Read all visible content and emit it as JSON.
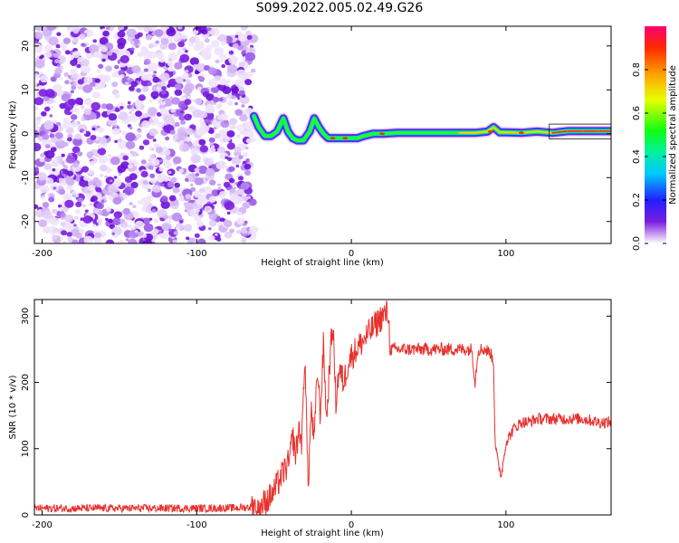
{
  "title": "S099.2022.005.02.49.G26",
  "chart_data": [
    {
      "type": "heatmap",
      "xlabel": "Height of straight line (km)",
      "ylabel": "Frequency (Hz)",
      "xlim": [
        -205,
        168
      ],
      "ylim": [
        -25,
        24.5
      ],
      "xticks": [
        -200,
        -100,
        0,
        100
      ],
      "yticks": [
        -20,
        -10,
        0,
        10,
        20
      ],
      "grid": false,
      "noise_region_x": [
        -205,
        -63
      ],
      "signal_track": {
        "x": [
          -63,
          -60,
          -56,
          -52,
          -48,
          -44,
          -41,
          -38,
          -35,
          -31,
          -27,
          -24,
          -21,
          -18,
          -15,
          -12,
          -8,
          -4,
          0,
          4,
          8,
          14,
          20,
          30,
          40,
          50,
          60,
          70,
          80,
          88,
          92,
          96,
          100,
          110,
          120,
          130,
          140,
          150,
          160,
          168
        ],
        "y": [
          4,
          1.5,
          -0.5,
          -0.5,
          0.5,
          3.5,
          0.5,
          -1,
          -1.5,
          -1.5,
          0.5,
          3.5,
          1.5,
          0,
          -1,
          -1,
          -1,
          -1,
          -1,
          -1,
          -0.5,
          0,
          0,
          0.2,
          0.2,
          0.2,
          0.2,
          0.2,
          0.2,
          0.5,
          1.5,
          0.3,
          0.3,
          0.2,
          0.5,
          0.2,
          0.6,
          0.6,
          0.6,
          0.6
        ]
      },
      "colorbar": {
        "label": "Normalized spectral amplitude",
        "ticks": [
          "0.0",
          "0.2",
          "0.4",
          "0.6",
          "0.8"
        ],
        "range": [
          0,
          1
        ]
      }
    },
    {
      "type": "line",
      "xlabel": "Height of straight line (km)",
      "ylabel": "SNR (10 * v/v)",
      "xlim": [
        -205,
        168
      ],
      "ylim": [
        0,
        325
      ],
      "xticks": [
        -200,
        -100,
        0,
        100
      ],
      "yticks": [
        0,
        100,
        200,
        300
      ],
      "grid": false,
      "series": [
        {
          "color": "#e8312d",
          "x": [
            -205,
            -180,
            -150,
            -120,
            -90,
            -70,
            -60,
            -55,
            -50,
            -45,
            -40,
            -38,
            -36,
            -34,
            -32,
            -30,
            -28,
            -26,
            -24,
            -22,
            -20,
            -18,
            -16,
            -14,
            -12,
            -10,
            -8,
            -5,
            -2,
            0,
            5,
            10,
            15,
            20,
            24,
            25,
            30,
            40,
            50,
            60,
            70,
            78,
            80,
            82,
            86,
            90,
            92,
            93,
            95,
            97,
            100,
            105,
            110,
            115,
            120,
            130,
            140,
            150,
            160,
            168
          ],
          "y": [
            10,
            10,
            10,
            10,
            10,
            11,
            13,
            20,
            35,
            60,
            80,
            120,
            90,
            130,
            110,
            250,
            40,
            160,
            110,
            220,
            150,
            260,
            140,
            230,
            290,
            170,
            220,
            200,
            230,
            240,
            255,
            270,
            285,
            300,
            305,
            250,
            250,
            250,
            250,
            250,
            250,
            250,
            200,
            250,
            250,
            245,
            230,
            110,
            75,
            60,
            110,
            130,
            140,
            140,
            145,
            145,
            145,
            145,
            140,
            140
          ]
        }
      ]
    }
  ]
}
